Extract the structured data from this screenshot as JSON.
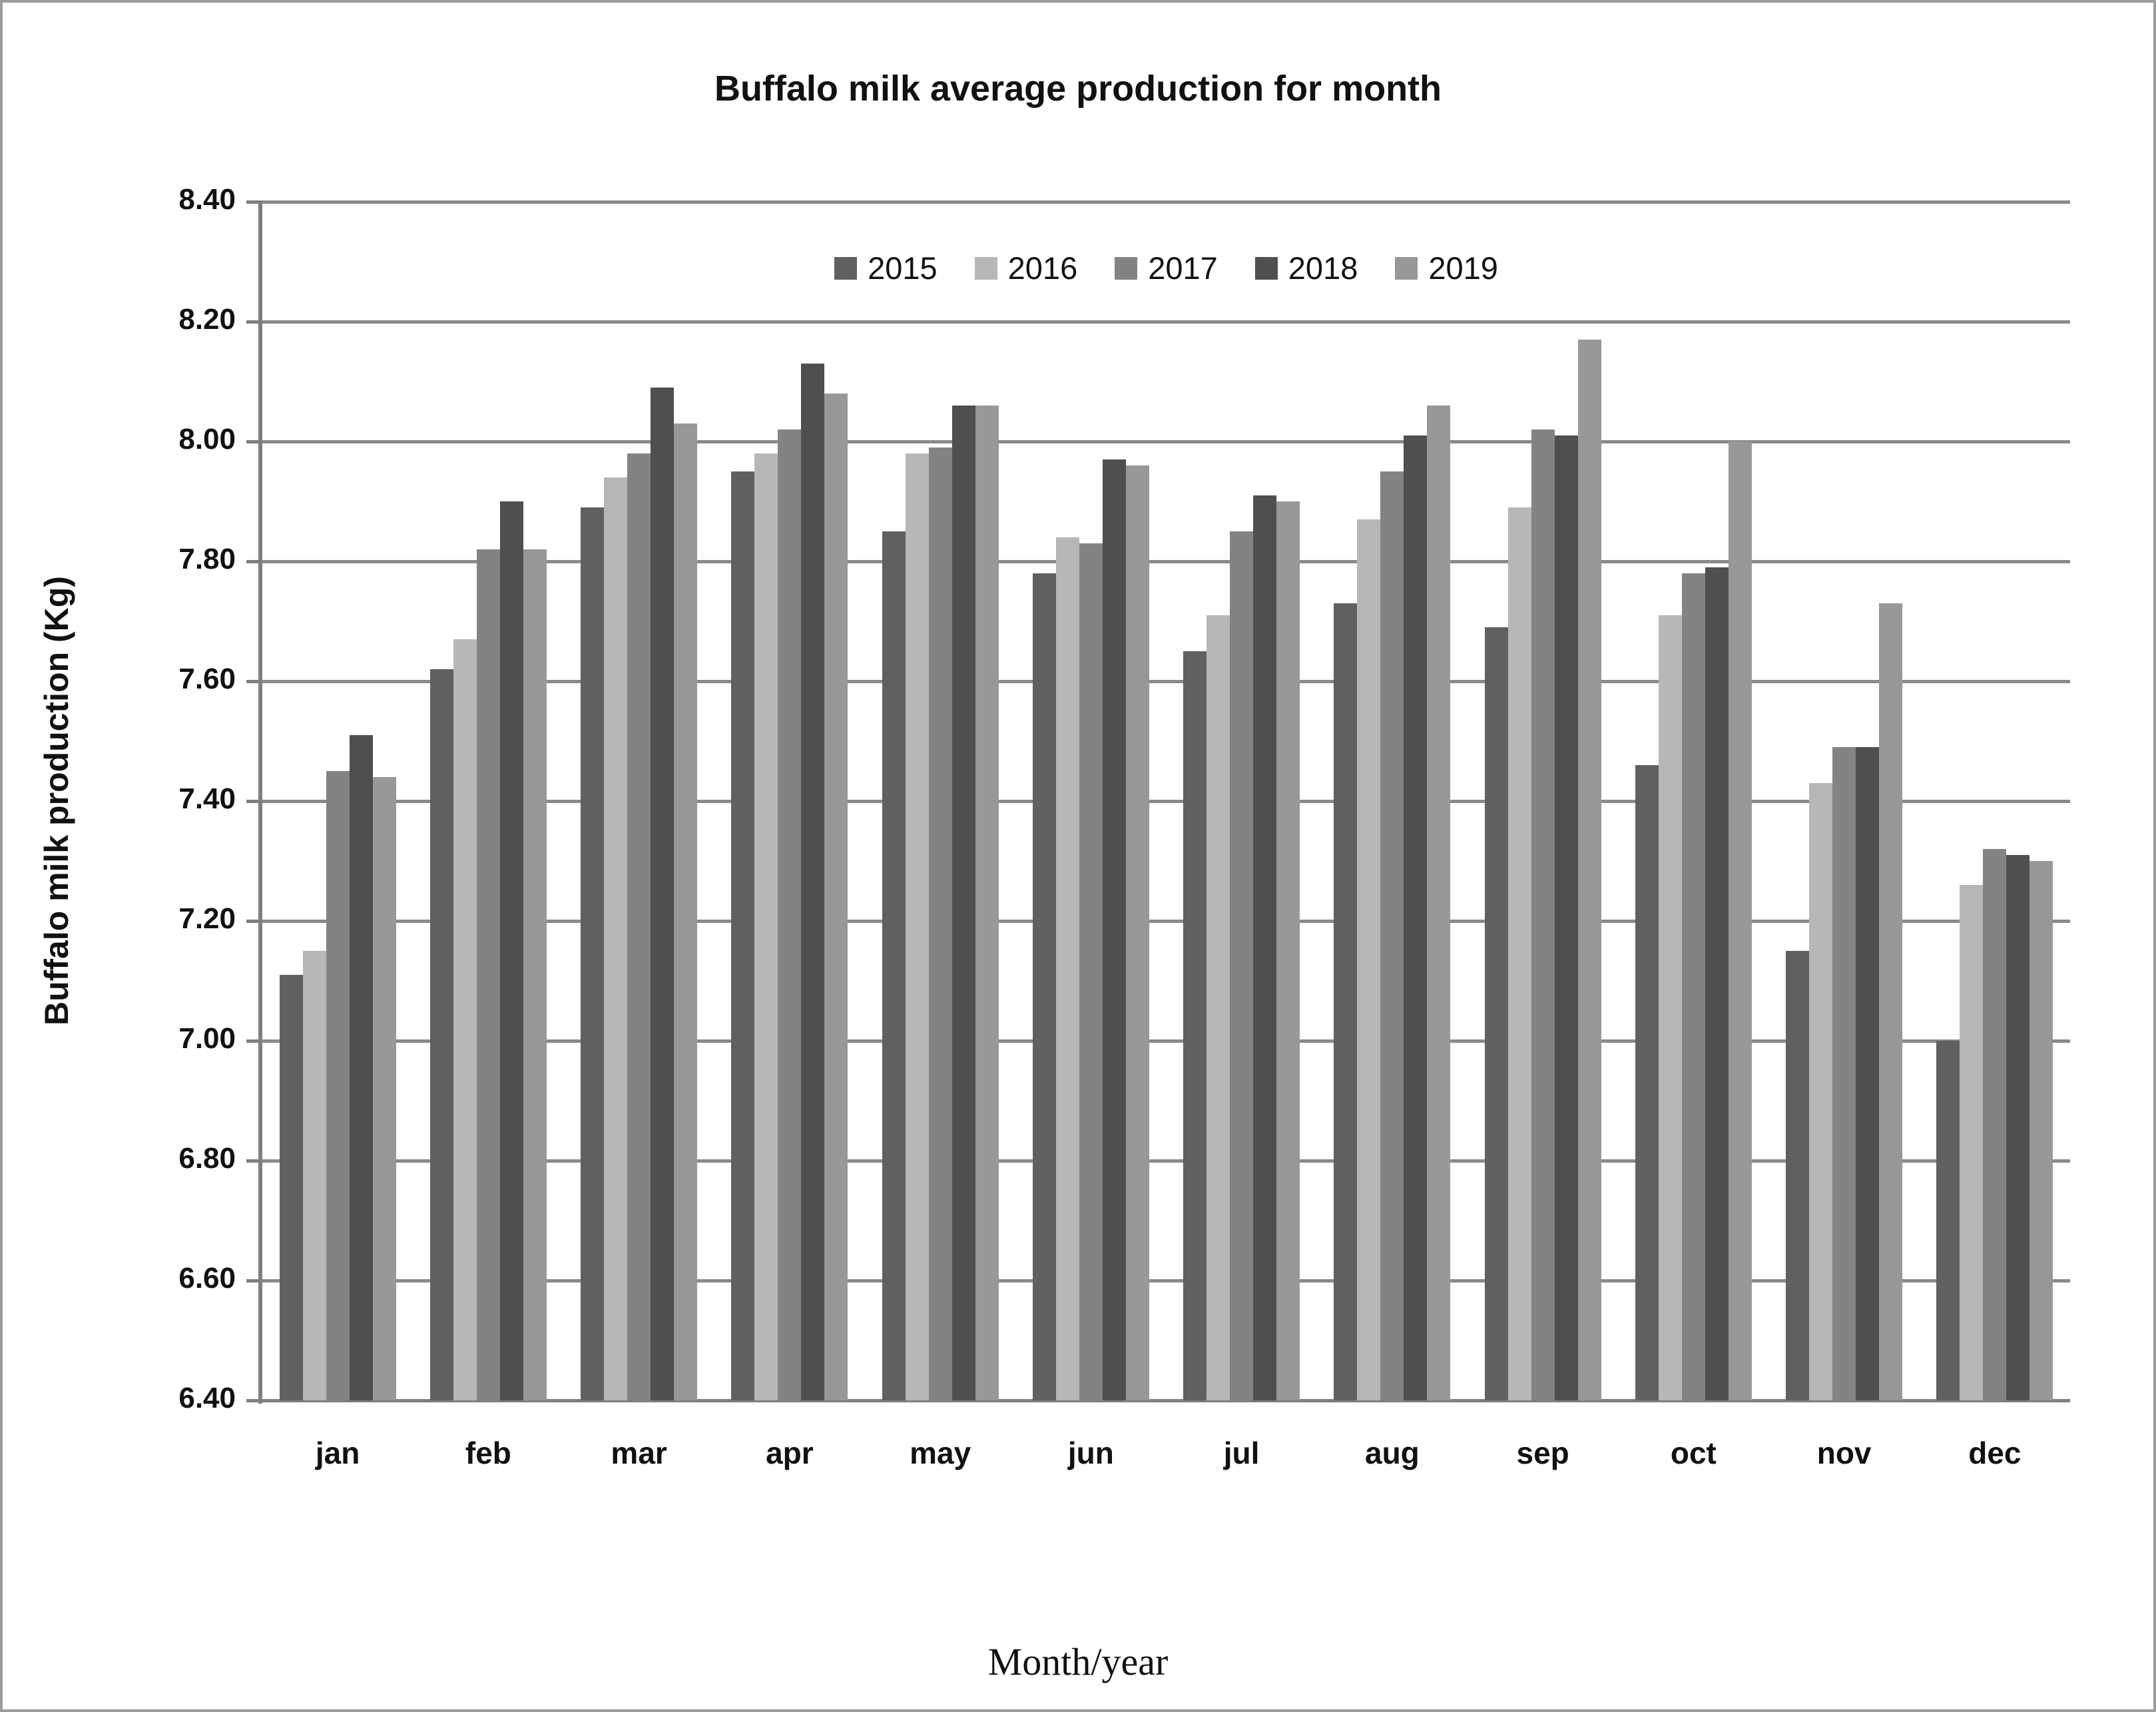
{
  "chart_data": {
    "type": "bar",
    "title": "Buffalo milk average production for month",
    "xlabel": "Month/year",
    "ylabel": "Buffalo milk production (Kg)",
    "ylim": [
      6.4,
      8.4
    ],
    "ytick_step": 0.2,
    "ytick_labels": [
      "8.40",
      "8.20",
      "8.00",
      "7.80",
      "7.60",
      "7.40",
      "7.20",
      "7.00",
      "6.80",
      "6.60",
      "6.40"
    ],
    "categories": [
      "jan",
      "feb",
      "mar",
      "apr",
      "may",
      "jun",
      "jul",
      "aug",
      "sep",
      "oct",
      "nov",
      "dec"
    ],
    "grid": true,
    "legend_position": "top-center-inside",
    "series": [
      {
        "name": "2015",
        "color": "#606060",
        "values": [
          7.11,
          7.62,
          7.89,
          7.95,
          7.85,
          7.78,
          7.65,
          7.73,
          7.69,
          7.46,
          7.15,
          7.0
        ]
      },
      {
        "name": "2016",
        "color": "#b7b7b7",
        "values": [
          7.15,
          7.67,
          7.94,
          7.98,
          7.98,
          7.84,
          7.71,
          7.87,
          7.89,
          7.71,
          7.43,
          7.26
        ]
      },
      {
        "name": "2017",
        "color": "#838383",
        "values": [
          7.45,
          7.82,
          7.98,
          8.02,
          7.99,
          7.83,
          7.85,
          7.95,
          8.02,
          7.78,
          7.49,
          7.32
        ]
      },
      {
        "name": "2018",
        "color": "#4f4f4f",
        "values": [
          7.51,
          7.9,
          8.09,
          8.13,
          8.06,
          7.97,
          7.91,
          8.01,
          8.01,
          7.79,
          7.49,
          7.31
        ]
      },
      {
        "name": "2019",
        "color": "#989898",
        "values": [
          7.44,
          7.82,
          8.03,
          8.08,
          8.06,
          7.96,
          7.9,
          8.06,
          8.17,
          8.0,
          7.73,
          7.3
        ]
      }
    ],
    "style": {
      "grid_color": "#8a8a8a",
      "axis_color": "#7f7f7f",
      "text_color": "#111111",
      "background": "#ffffff",
      "figure_border": "#9c9c9c"
    }
  }
}
